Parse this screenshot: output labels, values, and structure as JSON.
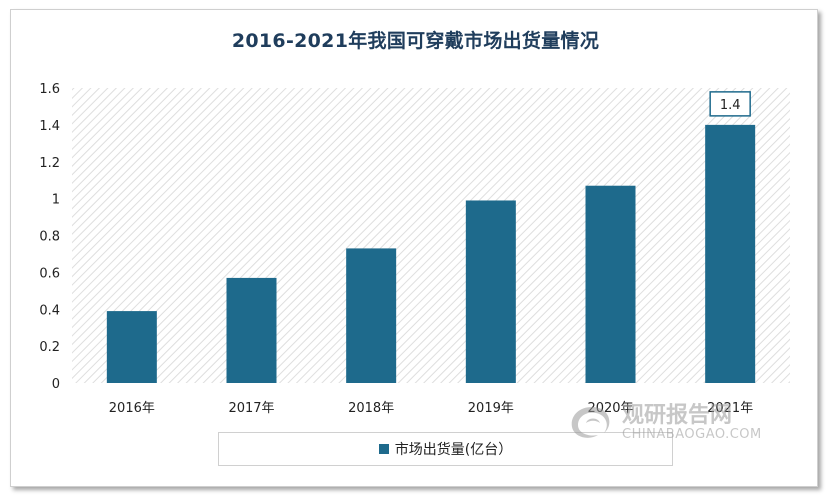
{
  "chart_data": {
    "type": "bar",
    "title": "2016-2021年我国可穿戴市场出货量情况",
    "categories": [
      "2016年",
      "2017年",
      "2018年",
      "2019年",
      "2020年",
      "2021年"
    ],
    "series": [
      {
        "name": "市场出货量(亿台）",
        "values": [
          0.39,
          0.57,
          0.73,
          0.99,
          1.07,
          1.4
        ],
        "color": "#1e6a8c"
      }
    ],
    "data_labels": [
      {
        "index": 5,
        "text": "1.4"
      }
    ],
    "yticks": [
      "0",
      "0.2",
      "0.4",
      "0.6",
      "0.8",
      "1",
      "1.2",
      "1.4",
      "1.6"
    ],
    "ylim": [
      0,
      1.6
    ],
    "grid": false,
    "plot_background": "diagonal-hatch",
    "legend_position": "bottom"
  },
  "watermark": {
    "cn": "观研报告网",
    "en": "CHINABAOGAO.COM",
    "icon": "swirl-logo-icon"
  }
}
